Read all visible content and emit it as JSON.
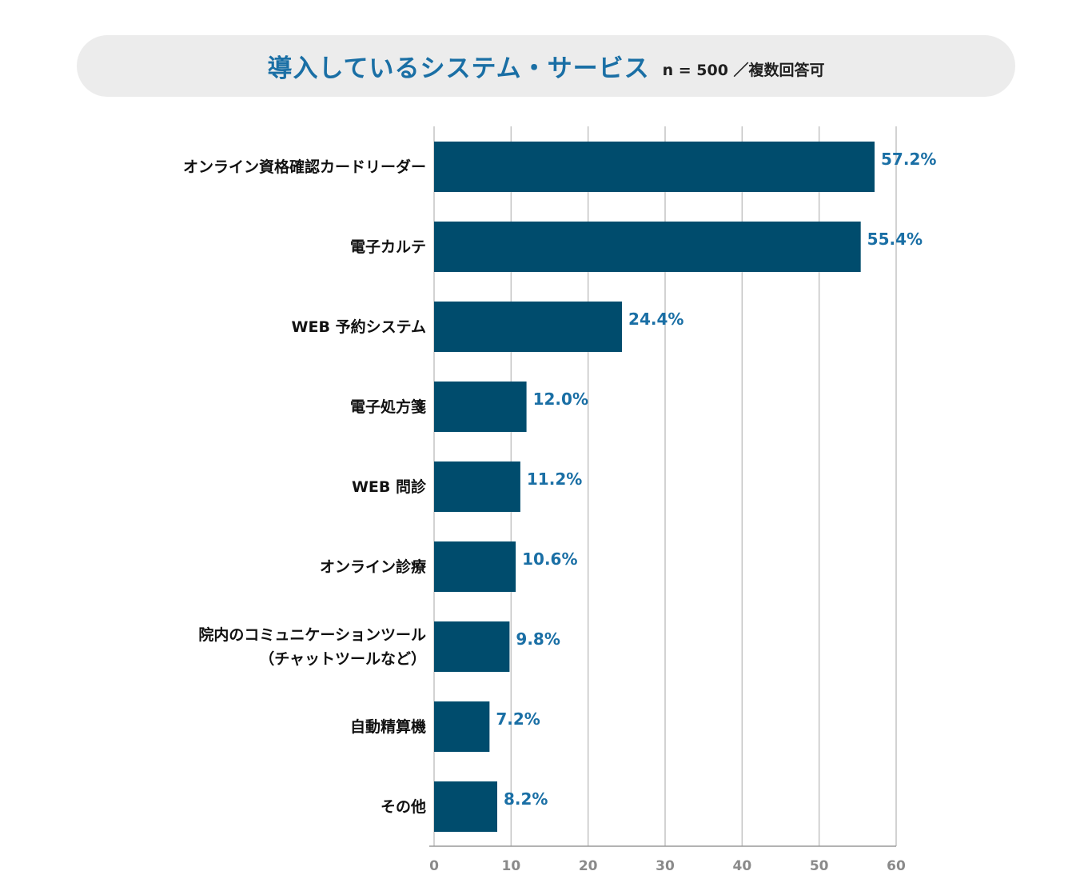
{
  "chart_data": {
    "type": "bar",
    "orientation": "horizontal",
    "title": "導入しているシステム・サービス",
    "subtitle": "n = 500 ／複数回答可",
    "categories": [
      "オンライン資格確認カードリーダー",
      "電子カルテ",
      "WEB 予約システム",
      "電子処方箋",
      "WEB 問診",
      "オンライン診療",
      "院内のコミュニケーションツール\n（チャットツールなど）",
      "自動精算機",
      "その他"
    ],
    "values": [
      57.2,
      55.4,
      24.4,
      12.0,
      11.2,
      10.6,
      9.8,
      7.2,
      8.2
    ],
    "value_labels": [
      "57.2%",
      "55.4%",
      "24.4%",
      "12.0%",
      "11.2%",
      "10.6%",
      "9.8%",
      "7.2%",
      "8.2%"
    ],
    "xlim": [
      0,
      60
    ],
    "xticks": [
      "0",
      "10",
      "20",
      "30",
      "40",
      "50",
      "60"
    ],
    "grid": true,
    "colors": {
      "bar": "#004c6d",
      "value_label": "#1a6fa5",
      "grid": "#c4c4c4",
      "tick": "#8a8a8a"
    }
  }
}
